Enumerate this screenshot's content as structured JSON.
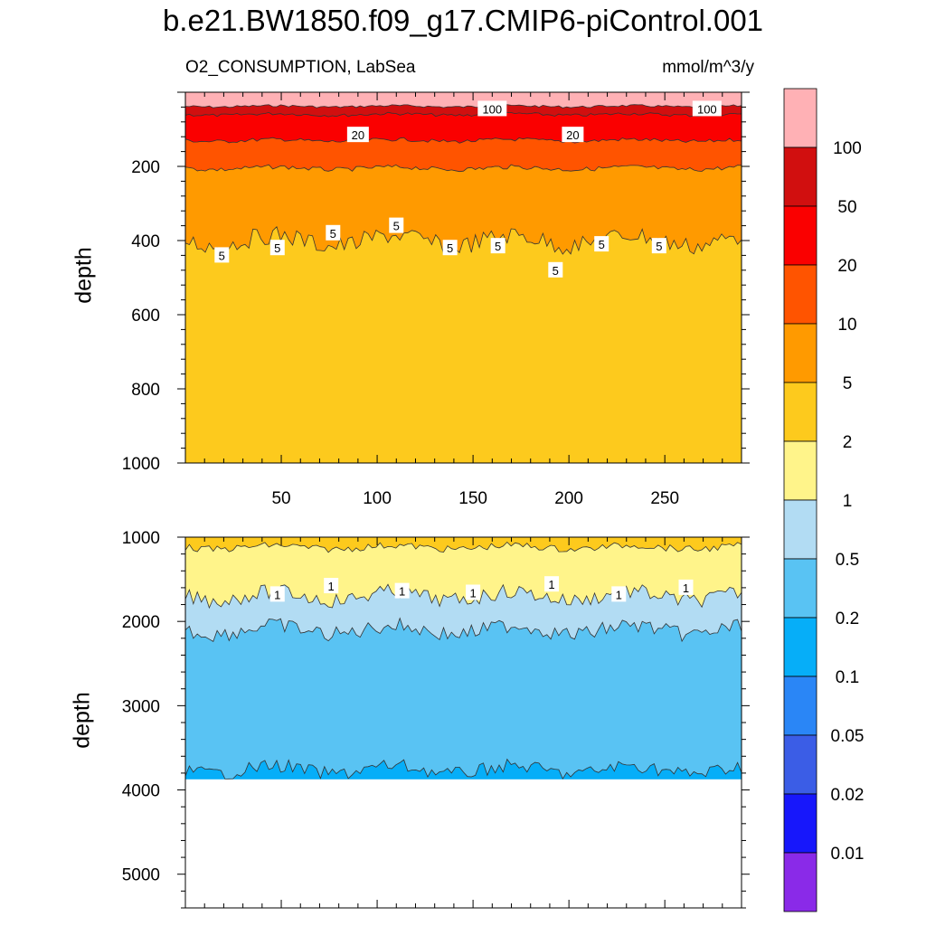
{
  "title": "b.e21.BW1850.f09_g17.CMIP6-piControl.001",
  "left_subtitle": "O2_CONSUMPTION, LabSea",
  "right_subtitle": "mmol/m^3/y",
  "chart_data": [
    {
      "type": "heatmap",
      "panel": "upper",
      "xlabel": "",
      "ylabel": "depth",
      "xlim": [
        0,
        290
      ],
      "ylim": [
        1000,
        0
      ],
      "xticks": [
        50,
        100,
        150,
        200,
        250
      ],
      "yticks": [
        200,
        400,
        600,
        800,
        1000
      ],
      "levels": [
        {
          "name": ">100",
          "top": 0,
          "bottom": 38
        },
        {
          "name": "50-100",
          "top": 38,
          "bottom": 60
        },
        {
          "name": "20-50",
          "top": 60,
          "bottom": 130
        },
        {
          "name": "10-20",
          "top": 130,
          "bottom": 205
        },
        {
          "name": "5-10",
          "top": 205,
          "bottom": 400
        },
        {
          "name": "2-5",
          "top": 400,
          "bottom": 1000
        }
      ],
      "contour_labels": [
        {
          "text": "100",
          "x": 160,
          "y": 45
        },
        {
          "text": "100",
          "x": 272,
          "y": 45
        },
        {
          "text": "20",
          "x": 90,
          "y": 115
        },
        {
          "text": "20",
          "x": 202,
          "y": 115
        },
        {
          "text": "5",
          "x": 19,
          "y": 440
        },
        {
          "text": "5",
          "x": 48,
          "y": 420
        },
        {
          "text": "5",
          "x": 77,
          "y": 380
        },
        {
          "text": "5",
          "x": 110,
          "y": 360
        },
        {
          "text": "5",
          "x": 138,
          "y": 420
        },
        {
          "text": "5",
          "x": 163,
          "y": 415
        },
        {
          "text": "5",
          "x": 193,
          "y": 480
        },
        {
          "text": "5",
          "x": 217,
          "y": 410
        },
        {
          "text": "5",
          "x": 247,
          "y": 415
        }
      ]
    },
    {
      "type": "heatmap",
      "panel": "lower",
      "xlabel": "",
      "ylabel": "depth",
      "xlim": [
        0,
        290
      ],
      "ylim": [
        5400,
        1000
      ],
      "yticks": [
        1000,
        2000,
        3000,
        4000,
        5000
      ],
      "levels": [
        {
          "name": "2-5",
          "top": 1000,
          "bottom": 1120
        },
        {
          "name": "1-2",
          "top": 1120,
          "bottom": 1700
        },
        {
          "name": "0.5-1",
          "top": 1700,
          "bottom": 2100
        },
        {
          "name": "0.2-0.5",
          "top": 2100,
          "bottom": 3760
        },
        {
          "name": "0.1-0.2",
          "top": 3760,
          "bottom": 3875
        }
      ],
      "bottom_of_data": 3875,
      "contour_labels": [
        {
          "text": "1",
          "x": 48,
          "y": 1680
        },
        {
          "text": "1",
          "x": 76,
          "y": 1580
        },
        {
          "text": "1",
          "x": 113,
          "y": 1640
        },
        {
          "text": "1",
          "x": 150,
          "y": 1660
        },
        {
          "text": "1",
          "x": 191,
          "y": 1560
        },
        {
          "text": "1",
          "x": 226,
          "y": 1680
        },
        {
          "text": "1",
          "x": 261,
          "y": 1600
        }
      ]
    }
  ],
  "colorbar": {
    "labels": [
      "100",
      "50",
      "20",
      "10",
      "5",
      "2",
      "1",
      "0.5",
      "0.2",
      "0.1",
      "0.05",
      "0.02",
      "0.01"
    ],
    "colors": [
      "#ffb1b5",
      "#d10f0f",
      "#fa0000",
      "#ff5400",
      "#ff9a00",
      "#fdca1d",
      "#fff48a",
      "#b2dcf3",
      "#59c3f3",
      "#06aef8",
      "#2a86f6",
      "#3b5de6",
      "#1717fb",
      "#8a2ae8"
    ]
  },
  "colors": {
    "c2_5": "#fdca1d",
    "c5_10": "#ff9a00",
    "c10_20": "#ff5400",
    "c20_50": "#fa0000",
    "c50_100": "#d10f0f",
    "c100": "#ffb1b5",
    "c1_2": "#fff48a",
    "c05_1": "#b2dcf3",
    "c02_05": "#59c3f3",
    "c01_02": "#06aef8"
  }
}
